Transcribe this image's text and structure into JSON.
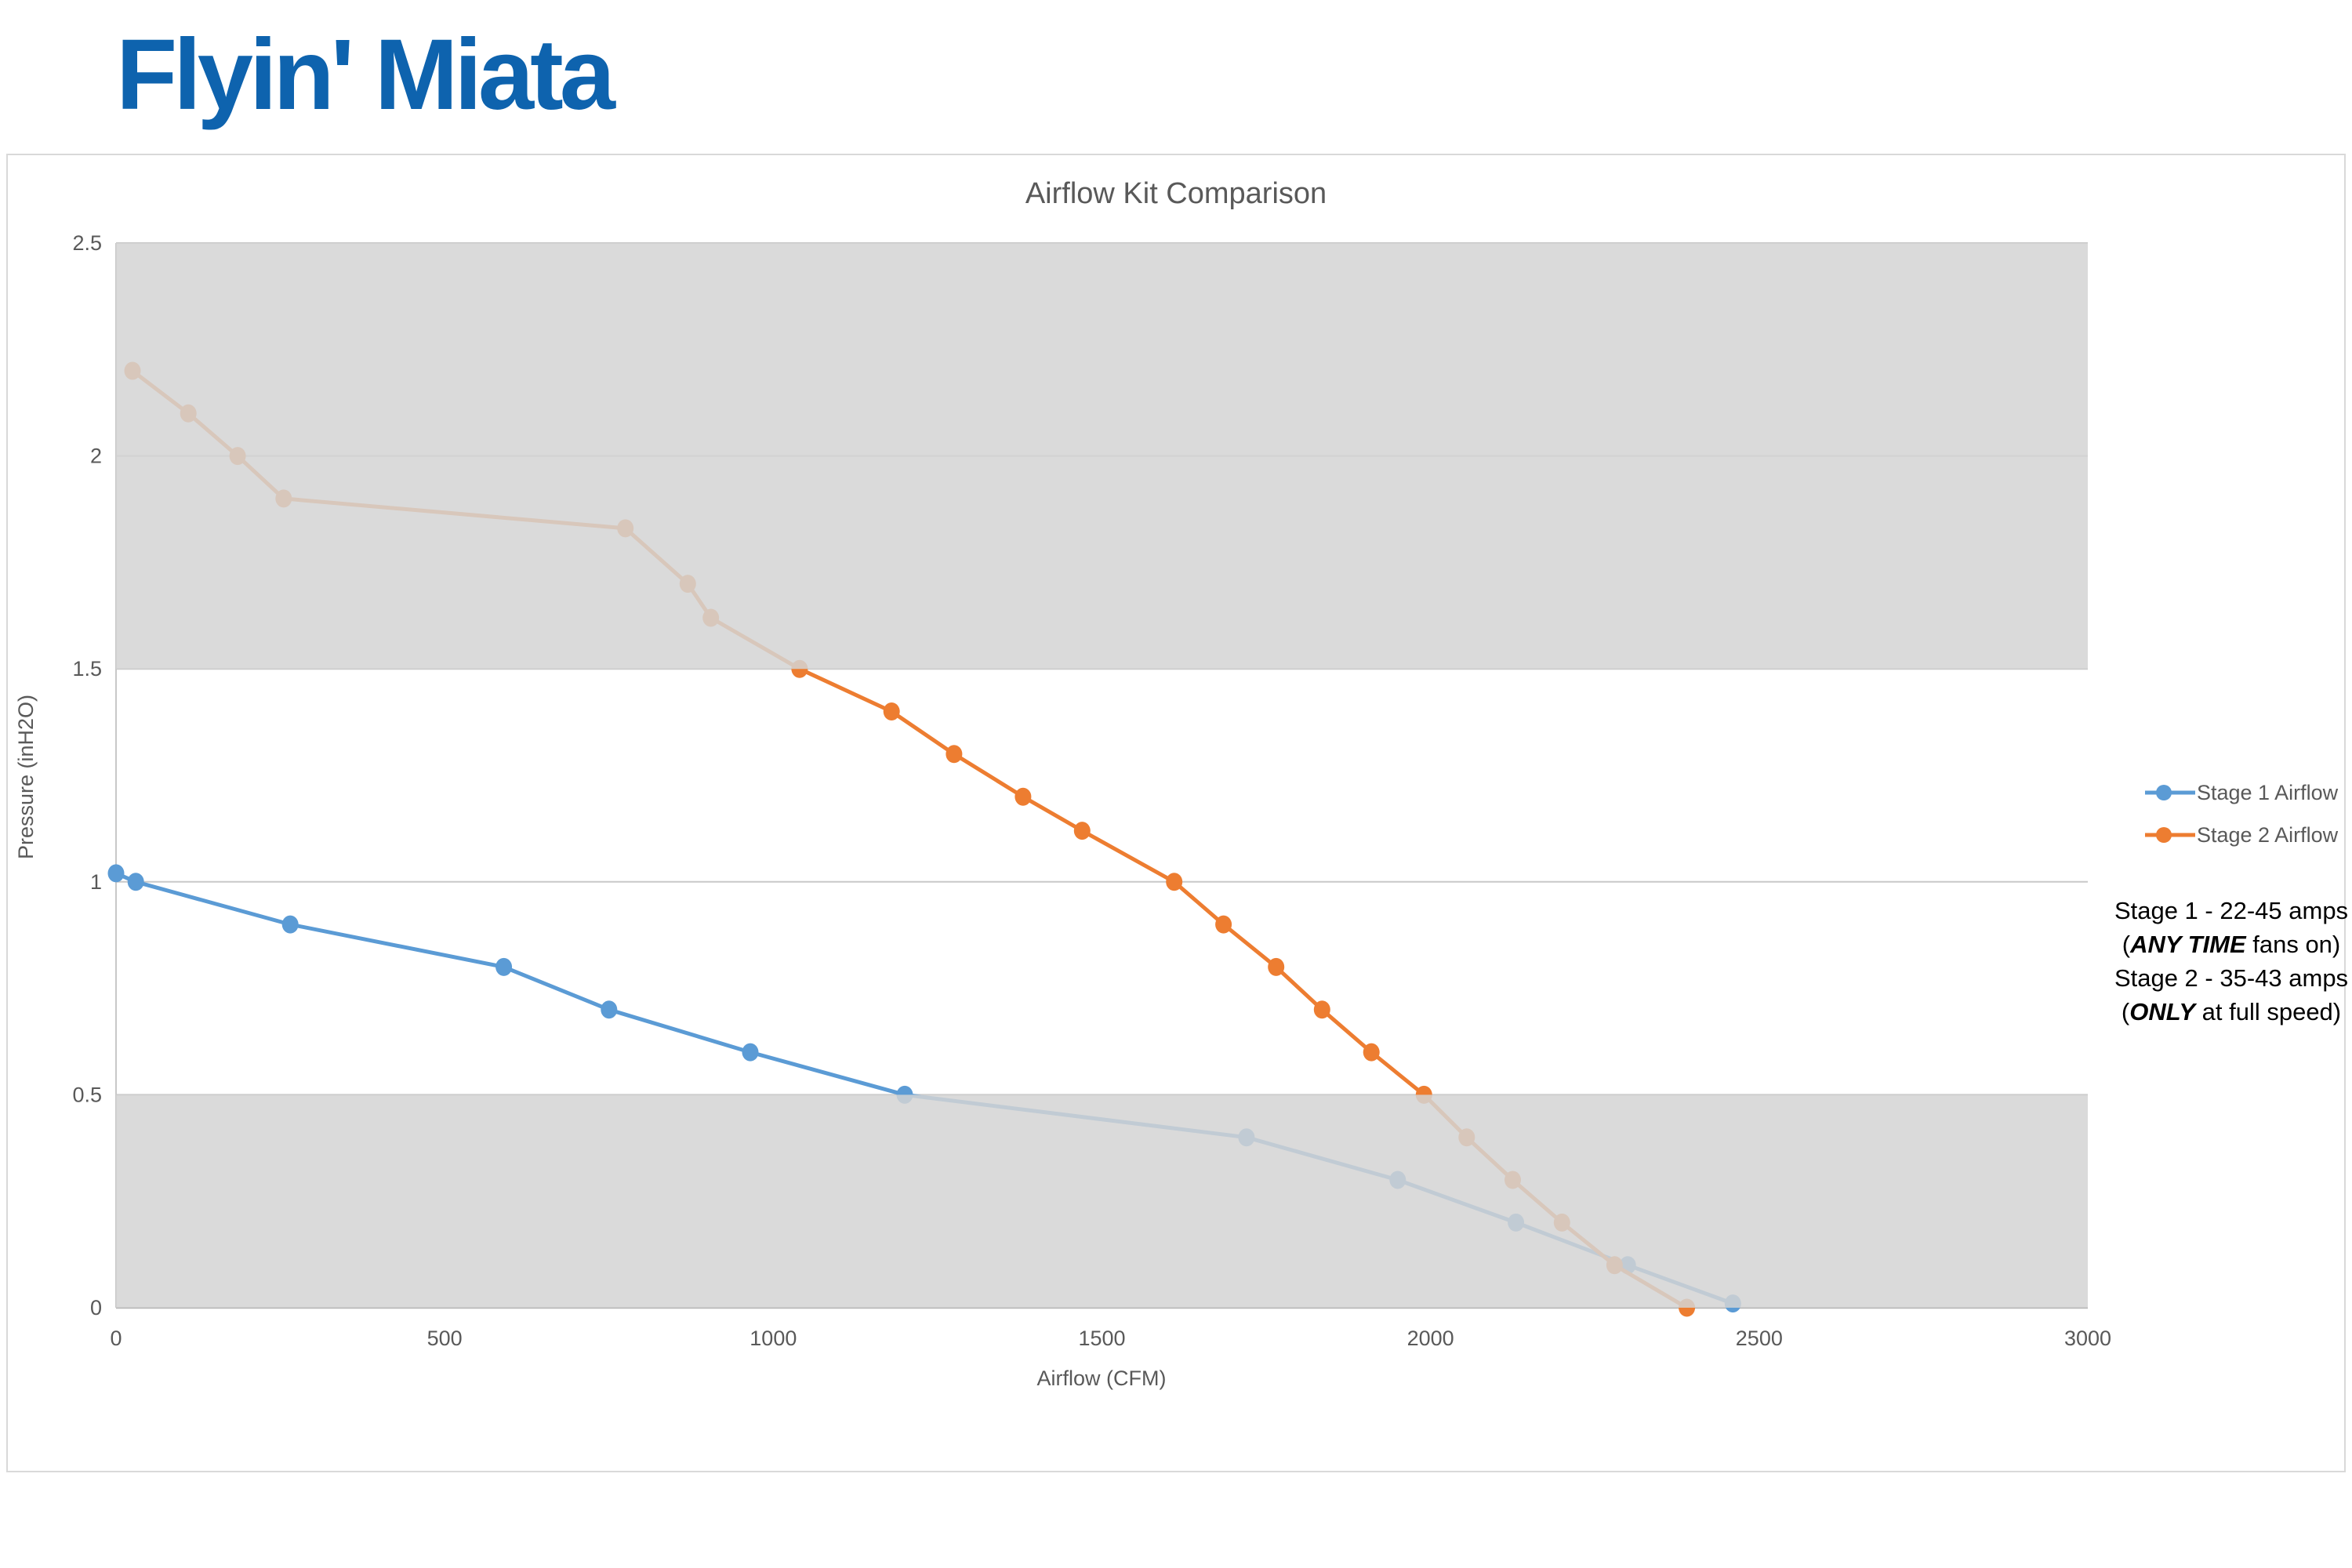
{
  "brand": {
    "name": "Flyin' Miata",
    "color": "#0E63AE"
  },
  "chart_data": {
    "type": "line",
    "title": "Airflow Kit Comparison",
    "xlabel": "Airflow (CFM)",
    "ylabel": "Pressure (inH2O)",
    "xlim": [
      0,
      3000
    ],
    "ylim": [
      0,
      2.5
    ],
    "x_ticks": [
      0,
      500,
      1000,
      1500,
      2000,
      2500,
      3000
    ],
    "x_tick_labels": [
      "0",
      "500",
      "1000",
      "1500",
      "2000",
      "2500",
      "3000"
    ],
    "y_ticks": [
      0,
      0.5,
      1,
      1.5,
      2,
      2.5
    ],
    "y_tick_labels": [
      "0",
      "0.5",
      "1",
      "1.5",
      "2",
      "2.5"
    ],
    "grid": "horizontal gridlines every 0.5",
    "legend_position": "right",
    "shaded_bands": {
      "color": "#d3d3d3",
      "opacity": 0.85,
      "ranges_inH2O": [
        [
          1.5,
          2.5
        ],
        [
          0,
          0.5
        ]
      ]
    },
    "series": [
      {
        "name": "Stage 1 Airflow",
        "color": "#5B9BD5",
        "points": [
          [
            0,
            1.02
          ],
          [
            30,
            1.0
          ],
          [
            265,
            0.9
          ],
          [
            590,
            0.8
          ],
          [
            750,
            0.7
          ],
          [
            965,
            0.6
          ],
          [
            1200,
            0.5
          ],
          [
            1720,
            0.4
          ],
          [
            1950,
            0.3
          ],
          [
            2130,
            0.2
          ],
          [
            2300,
            0.1
          ],
          [
            2460,
            0.01
          ]
        ]
      },
      {
        "name": "Stage 2 Airflow",
        "color": "#ED7D31",
        "points": [
          [
            25,
            2.2
          ],
          [
            110,
            2.1
          ],
          [
            185,
            2.0
          ],
          [
            255,
            1.9
          ],
          [
            775,
            1.83
          ],
          [
            870,
            1.7
          ],
          [
            905,
            1.62
          ],
          [
            1040,
            1.5
          ],
          [
            1180,
            1.4
          ],
          [
            1275,
            1.3
          ],
          [
            1380,
            1.2
          ],
          [
            1470,
            1.12
          ],
          [
            1610,
            1.0
          ],
          [
            1685,
            0.9
          ],
          [
            1765,
            0.8
          ],
          [
            1835,
            0.7
          ],
          [
            1910,
            0.6
          ],
          [
            1990,
            0.5
          ],
          [
            2055,
            0.4
          ],
          [
            2125,
            0.3
          ],
          [
            2200,
            0.2
          ],
          [
            2280,
            0.1
          ],
          [
            2390,
            0
          ]
        ]
      }
    ]
  },
  "annotation": {
    "lines": [
      [
        {
          "text": "Stage 1 - 22-45 amps"
        }
      ],
      [
        {
          "text": "("
        },
        {
          "text": "ANY TIME",
          "em": true
        },
        {
          "text": " fans on)"
        }
      ],
      [
        {
          "text": "Stage 2 - 35-43 amps"
        }
      ],
      [
        {
          "text": "("
        },
        {
          "text": "ONLY",
          "em": true
        },
        {
          "text": " at full speed)"
        }
      ]
    ]
  },
  "colors": {
    "title_text": "#595959",
    "axis_text": "#595959",
    "gridline": "#c8c8c8",
    "axis_line": "#b3b3b3",
    "frame_border": "#d9d9d9"
  }
}
